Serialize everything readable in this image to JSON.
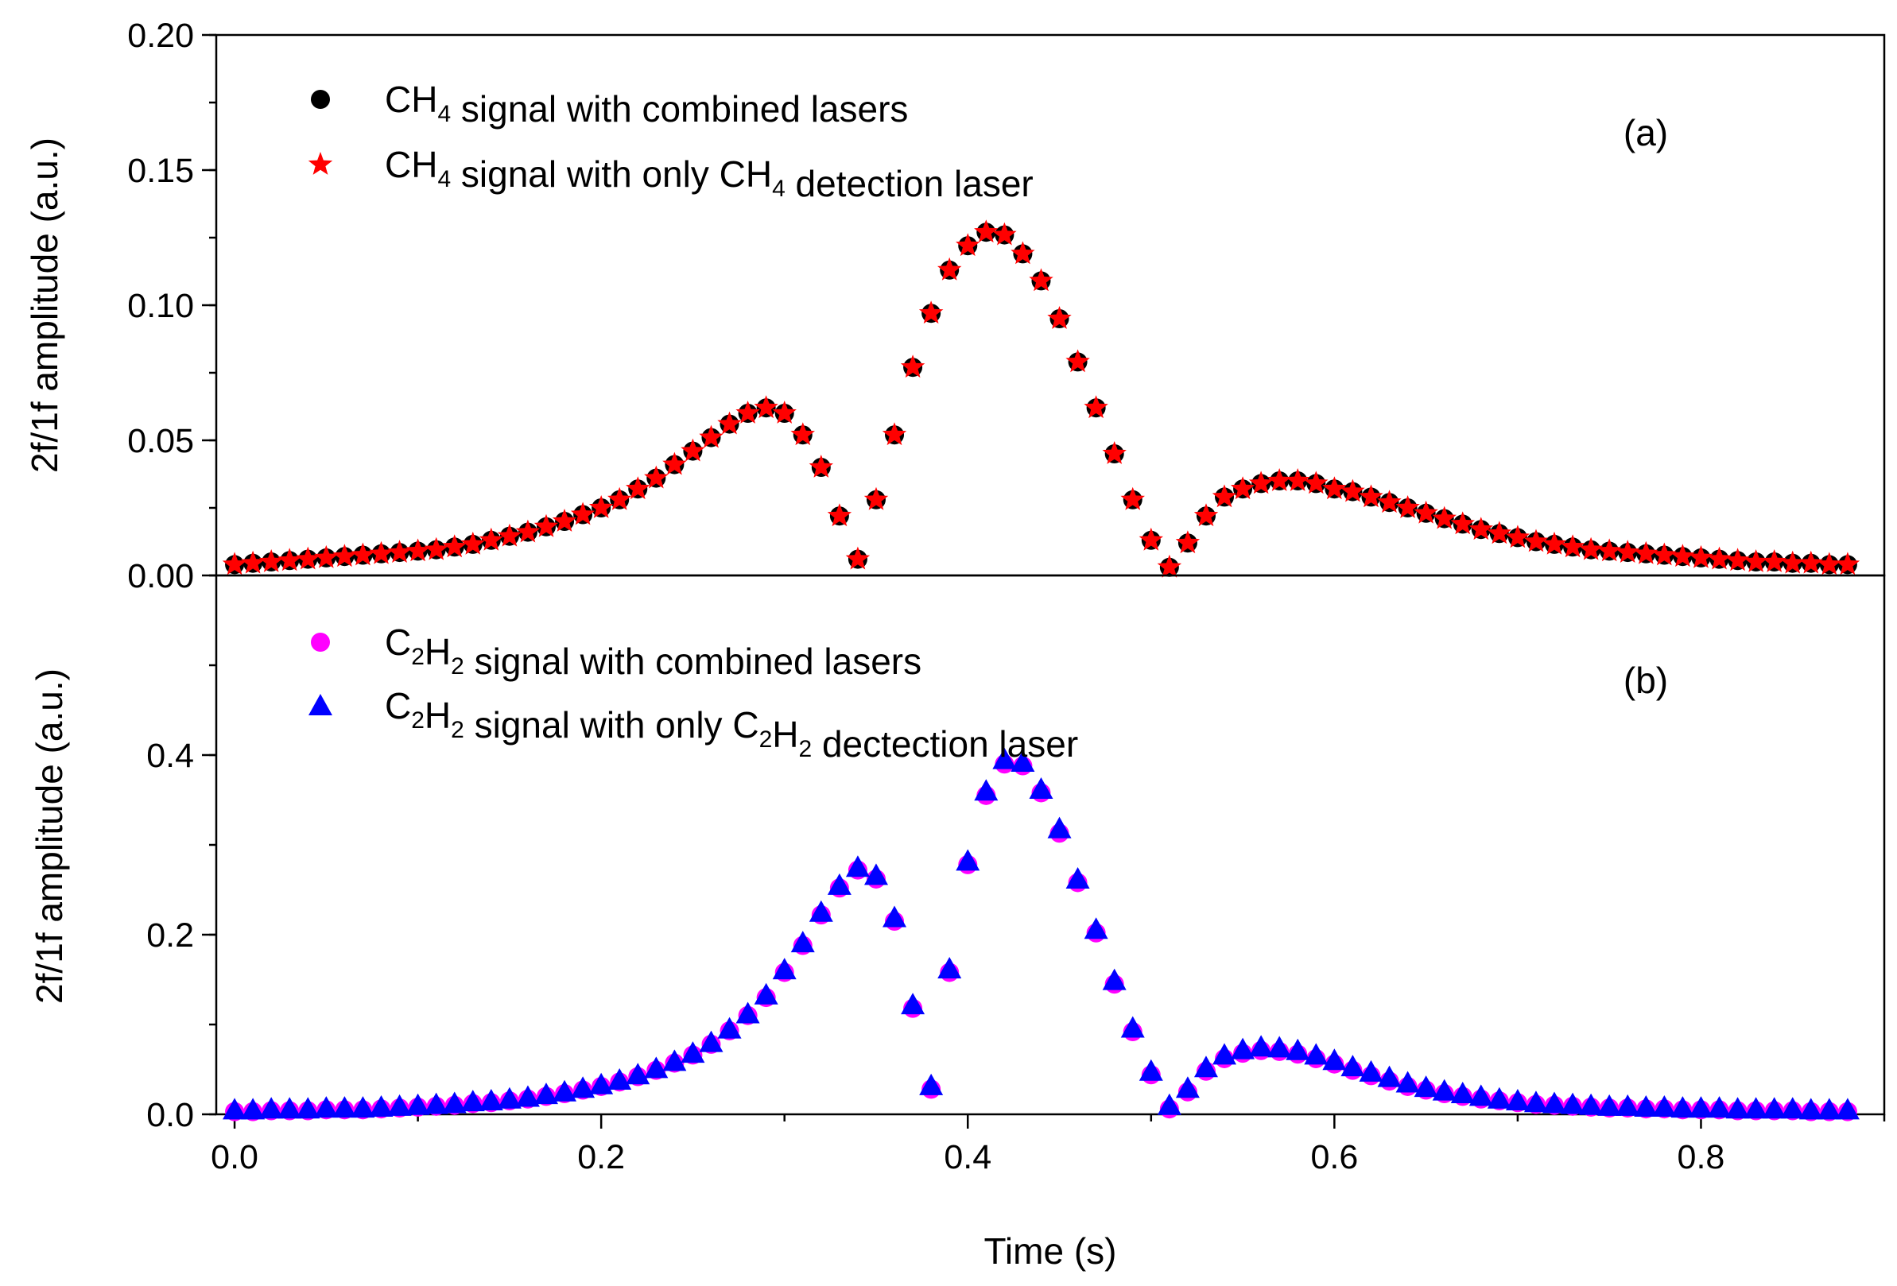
{
  "chart_data": [
    {
      "panel": "a",
      "type": "scatter",
      "tag": "(a)",
      "ylabel": "2f/1f amplitude (a.u.)",
      "ylim": [
        0,
        0.2
      ],
      "yticks": [
        0.0,
        0.05,
        0.1,
        0.15,
        0.2
      ],
      "ytick_labels": [
        "0.00",
        "0.05",
        "0.10",
        "0.15",
        "0.20"
      ],
      "xlim": [
        -0.01,
        0.9
      ],
      "x": [
        0.0,
        0.01,
        0.02,
        0.03,
        0.04,
        0.05,
        0.06,
        0.07,
        0.08,
        0.09,
        0.1,
        0.11,
        0.12,
        0.13,
        0.14,
        0.15,
        0.16,
        0.17,
        0.18,
        0.19,
        0.2,
        0.21,
        0.22,
        0.23,
        0.24,
        0.25,
        0.26,
        0.27,
        0.28,
        0.29,
        0.3,
        0.31,
        0.32,
        0.33,
        0.34,
        0.35,
        0.36,
        0.37,
        0.38,
        0.39,
        0.4,
        0.41,
        0.42,
        0.43,
        0.44,
        0.45,
        0.46,
        0.47,
        0.48,
        0.49,
        0.5,
        0.51,
        0.52,
        0.53,
        0.54,
        0.55,
        0.56,
        0.57,
        0.58,
        0.59,
        0.6,
        0.61,
        0.62,
        0.63,
        0.64,
        0.65,
        0.66,
        0.67,
        0.68,
        0.69,
        0.7,
        0.71,
        0.72,
        0.73,
        0.74,
        0.75,
        0.76,
        0.77,
        0.78,
        0.79,
        0.8,
        0.81,
        0.82,
        0.83,
        0.84,
        0.85,
        0.86,
        0.87,
        0.88
      ],
      "series": [
        {
          "name_parts": [
            [
              "CH",
              "n"
            ],
            [
              "4",
              "sub"
            ],
            [
              " signal with combined lasers",
              "n"
            ]
          ],
          "marker": "circle",
          "color": "#000000",
          "values": [
            0.004,
            0.0045,
            0.005,
            0.0055,
            0.006,
            0.0065,
            0.007,
            0.0075,
            0.008,
            0.0085,
            0.009,
            0.0095,
            0.0105,
            0.0115,
            0.013,
            0.0145,
            0.016,
            0.018,
            0.02,
            0.0225,
            0.025,
            0.028,
            0.032,
            0.036,
            0.041,
            0.046,
            0.051,
            0.056,
            0.06,
            0.062,
            0.06,
            0.052,
            0.04,
            0.022,
            0.006,
            0.028,
            0.052,
            0.077,
            0.097,
            0.113,
            0.122,
            0.127,
            0.126,
            0.119,
            0.109,
            0.095,
            0.079,
            0.062,
            0.045,
            0.028,
            0.013,
            0.003,
            0.012,
            0.022,
            0.029,
            0.032,
            0.034,
            0.035,
            0.035,
            0.034,
            0.032,
            0.031,
            0.029,
            0.027,
            0.025,
            0.023,
            0.021,
            0.019,
            0.017,
            0.0155,
            0.014,
            0.0125,
            0.0115,
            0.0105,
            0.0095,
            0.009,
            0.0085,
            0.008,
            0.0075,
            0.007,
            0.0065,
            0.006,
            0.0055,
            0.005,
            0.005,
            0.0045,
            0.0045,
            0.004,
            0.004
          ]
        },
        {
          "name_parts": [
            [
              "CH",
              "n"
            ],
            [
              "4",
              "sub"
            ],
            [
              " signal with only CH",
              "n"
            ],
            [
              "4",
              "sub"
            ],
            [
              " detection laser",
              "n"
            ]
          ],
          "marker": "star",
          "color": "#ff0000",
          "values": [
            0.004,
            0.0045,
            0.005,
            0.0055,
            0.006,
            0.0065,
            0.007,
            0.0075,
            0.008,
            0.0085,
            0.009,
            0.0095,
            0.0105,
            0.0115,
            0.013,
            0.0145,
            0.016,
            0.018,
            0.02,
            0.0225,
            0.025,
            0.028,
            0.032,
            0.036,
            0.041,
            0.046,
            0.051,
            0.056,
            0.06,
            0.062,
            0.06,
            0.052,
            0.04,
            0.022,
            0.006,
            0.028,
            0.052,
            0.077,
            0.097,
            0.113,
            0.122,
            0.127,
            0.126,
            0.119,
            0.109,
            0.095,
            0.079,
            0.062,
            0.045,
            0.028,
            0.013,
            0.003,
            0.012,
            0.022,
            0.029,
            0.032,
            0.034,
            0.035,
            0.035,
            0.034,
            0.032,
            0.031,
            0.029,
            0.027,
            0.025,
            0.023,
            0.021,
            0.019,
            0.017,
            0.0155,
            0.014,
            0.0125,
            0.0115,
            0.0105,
            0.0095,
            0.009,
            0.0085,
            0.008,
            0.0075,
            0.007,
            0.0065,
            0.006,
            0.0055,
            0.005,
            0.005,
            0.0045,
            0.0045,
            0.004,
            0.004
          ]
        }
      ]
    },
    {
      "panel": "b",
      "type": "scatter",
      "tag": "(b)",
      "ylabel": "2f/1f amplitude (a.u.)",
      "xlabel": "Time (s)",
      "ylim": [
        0,
        0.6
      ],
      "yticks": [
        0.0,
        0.2,
        0.4
      ],
      "ytick_labels": [
        "0.0",
        "0.2",
        "0.4"
      ],
      "xlim": [
        -0.01,
        0.9
      ],
      "xticks": [
        0.0,
        0.2,
        0.4,
        0.6,
        0.8
      ],
      "xtick_labels": [
        "0.0",
        "0.2",
        "0.4",
        "0.6",
        "0.8"
      ],
      "x": [
        0.0,
        0.01,
        0.02,
        0.03,
        0.04,
        0.05,
        0.06,
        0.07,
        0.08,
        0.09,
        0.1,
        0.11,
        0.12,
        0.13,
        0.14,
        0.15,
        0.16,
        0.17,
        0.18,
        0.19,
        0.2,
        0.21,
        0.22,
        0.23,
        0.24,
        0.25,
        0.26,
        0.27,
        0.28,
        0.29,
        0.3,
        0.31,
        0.32,
        0.33,
        0.34,
        0.35,
        0.36,
        0.37,
        0.38,
        0.39,
        0.4,
        0.41,
        0.42,
        0.43,
        0.44,
        0.45,
        0.46,
        0.47,
        0.48,
        0.49,
        0.5,
        0.51,
        0.52,
        0.53,
        0.54,
        0.55,
        0.56,
        0.57,
        0.58,
        0.59,
        0.6,
        0.61,
        0.62,
        0.63,
        0.64,
        0.65,
        0.66,
        0.67,
        0.68,
        0.69,
        0.7,
        0.71,
        0.72,
        0.73,
        0.74,
        0.75,
        0.76,
        0.77,
        0.78,
        0.79,
        0.8,
        0.81,
        0.82,
        0.83,
        0.84,
        0.85,
        0.86,
        0.87,
        0.88
      ],
      "series": [
        {
          "name_parts": [
            [
              "C",
              "n"
            ],
            [
              "2",
              "sub"
            ],
            [
              "H",
              "n"
            ],
            [
              "2",
              "sub"
            ],
            [
              " signal with combined lasers",
              "n"
            ]
          ],
          "marker": "circle",
          "color": "#ff00ff",
          "values": [
            0.003,
            0.003,
            0.004,
            0.004,
            0.004,
            0.005,
            0.005,
            0.005,
            0.006,
            0.007,
            0.008,
            0.009,
            0.01,
            0.012,
            0.013,
            0.015,
            0.017,
            0.02,
            0.023,
            0.027,
            0.031,
            0.036,
            0.042,
            0.049,
            0.057,
            0.066,
            0.078,
            0.093,
            0.11,
            0.13,
            0.158,
            0.188,
            0.222,
            0.252,
            0.272,
            0.262,
            0.215,
            0.118,
            0.028,
            0.158,
            0.278,
            0.355,
            0.39,
            0.388,
            0.358,
            0.313,
            0.258,
            0.202,
            0.145,
            0.092,
            0.044,
            0.006,
            0.025,
            0.048,
            0.062,
            0.068,
            0.071,
            0.07,
            0.067,
            0.062,
            0.056,
            0.049,
            0.043,
            0.037,
            0.031,
            0.027,
            0.023,
            0.02,
            0.017,
            0.015,
            0.013,
            0.011,
            0.01,
            0.009,
            0.008,
            0.007,
            0.007,
            0.006,
            0.006,
            0.005,
            0.005,
            0.005,
            0.004,
            0.004,
            0.004,
            0.004,
            0.003,
            0.003,
            0.003
          ]
        },
        {
          "name_parts": [
            [
              "C",
              "n"
            ],
            [
              "2",
              "sub"
            ],
            [
              "H",
              "n"
            ],
            [
              "2",
              "sub"
            ],
            [
              " signal with only C",
              "n"
            ],
            [
              "2",
              "sub"
            ],
            [
              "H",
              "n"
            ],
            [
              "2",
              "sub"
            ],
            [
              " dectection laser",
              "n"
            ]
          ],
          "marker": "triangle",
          "color": "#0000ff",
          "values": [
            0.005,
            0.005,
            0.006,
            0.006,
            0.006,
            0.007,
            0.007,
            0.007,
            0.008,
            0.009,
            0.01,
            0.011,
            0.012,
            0.014,
            0.015,
            0.017,
            0.019,
            0.022,
            0.025,
            0.029,
            0.033,
            0.038,
            0.044,
            0.051,
            0.059,
            0.068,
            0.08,
            0.095,
            0.112,
            0.133,
            0.161,
            0.191,
            0.225,
            0.255,
            0.275,
            0.266,
            0.219,
            0.122,
            0.032,
            0.162,
            0.282,
            0.36,
            0.395,
            0.392,
            0.362,
            0.318,
            0.262,
            0.206,
            0.149,
            0.096,
            0.048,
            0.01,
            0.029,
            0.052,
            0.066,
            0.072,
            0.075,
            0.074,
            0.071,
            0.066,
            0.06,
            0.053,
            0.047,
            0.041,
            0.035,
            0.03,
            0.026,
            0.023,
            0.02,
            0.017,
            0.015,
            0.013,
            0.012,
            0.011,
            0.01,
            0.009,
            0.009,
            0.008,
            0.008,
            0.007,
            0.007,
            0.007,
            0.006,
            0.006,
            0.006,
            0.006,
            0.005,
            0.005,
            0.005
          ]
        }
      ]
    }
  ]
}
